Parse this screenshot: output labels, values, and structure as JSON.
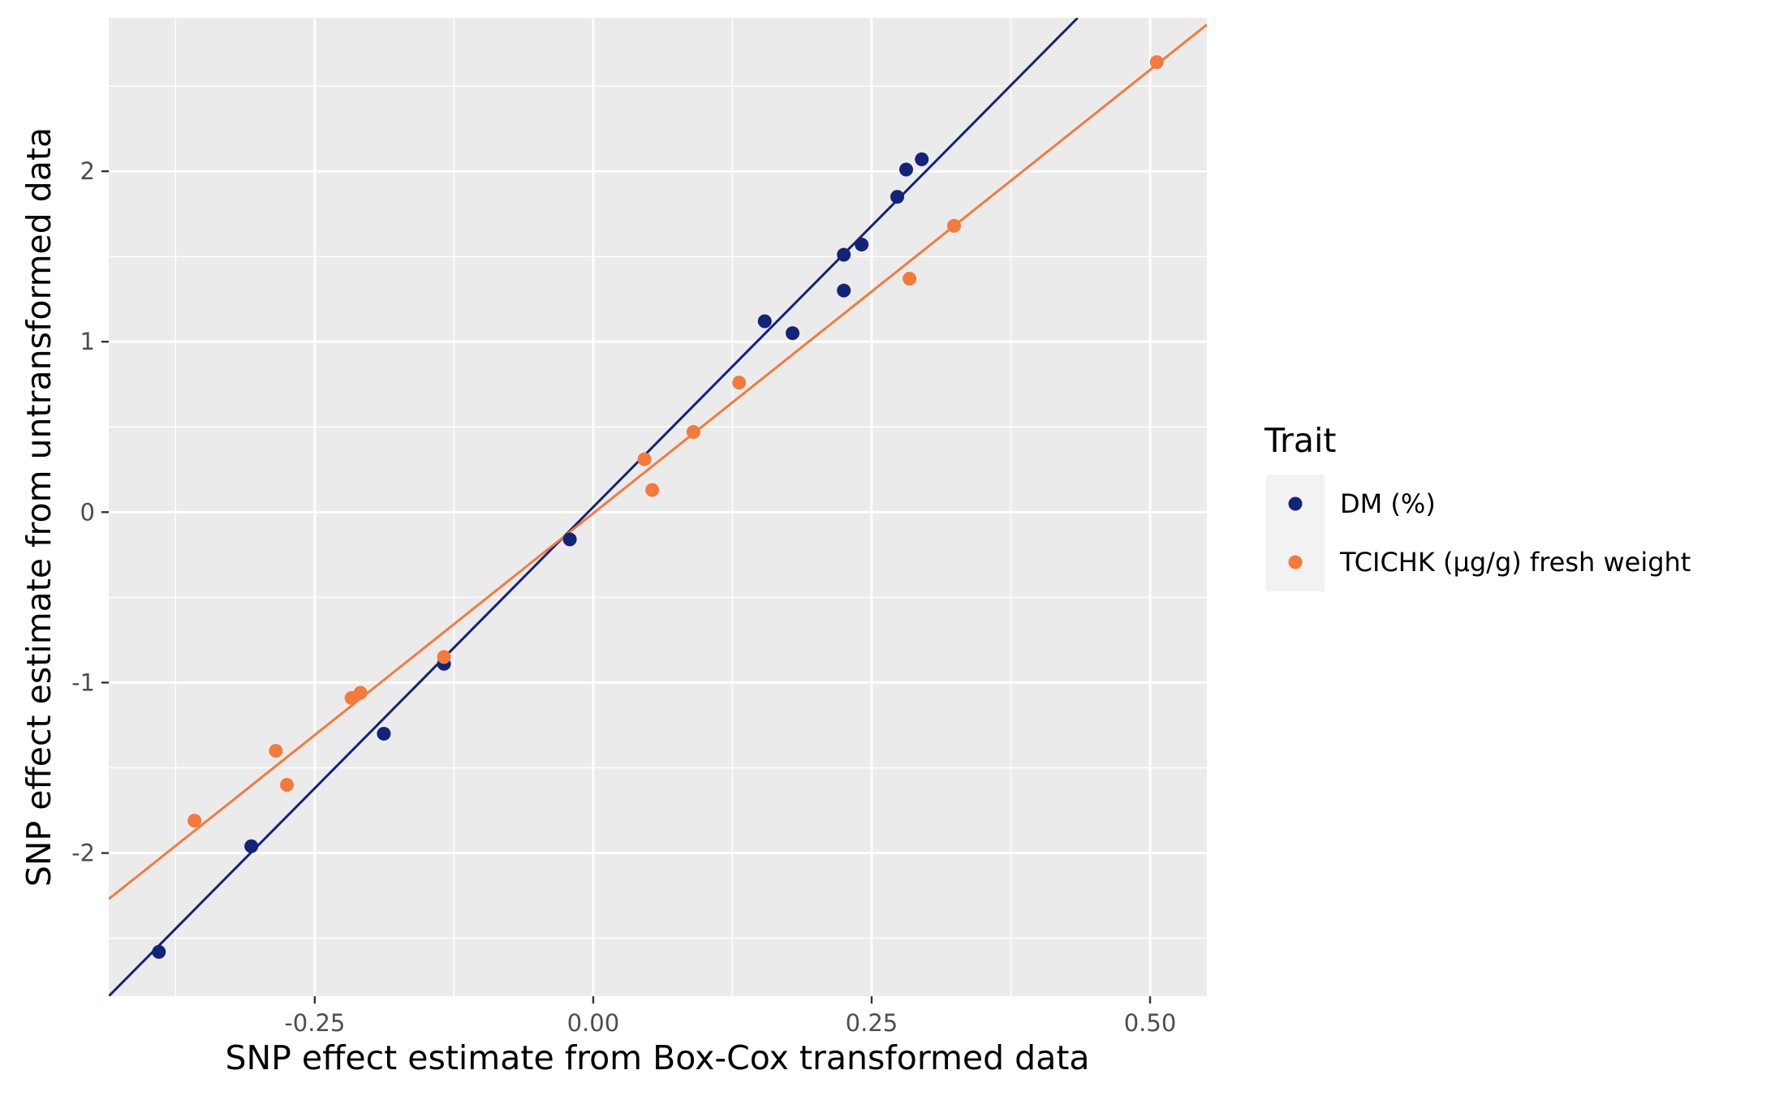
{
  "chart_data": {
    "type": "scatter",
    "title": "",
    "xlabel": "SNP effect estimate from Box-Cox transformed data",
    "ylabel": "SNP effect estimate from untransformed data",
    "xlim": [
      -0.435,
      0.551
    ],
    "ylim": [
      -2.84,
      2.9
    ],
    "x_ticks": [
      -0.25,
      0.0,
      0.25,
      0.5
    ],
    "x_tick_labels": [
      "-0.25",
      "0.00",
      "0.25",
      "0.50"
    ],
    "y_ticks": [
      -2,
      -1,
      0,
      1,
      2
    ],
    "y_tick_labels": [
      "-2",
      "-1",
      "0",
      "1",
      "2"
    ],
    "grid": true,
    "legend": {
      "title": "Trait",
      "position": "right"
    },
    "series": [
      {
        "name": "DM (%)",
        "color": "#13237a",
        "points": [
          [
            -0.39,
            -2.58
          ],
          [
            -0.307,
            -1.96
          ],
          [
            -0.188,
            -1.3
          ],
          [
            -0.134,
            -0.89
          ],
          [
            -0.021,
            -0.16
          ],
          [
            0.154,
            1.12
          ],
          [
            0.179,
            1.05
          ],
          [
            0.225,
            1.3
          ],
          [
            0.225,
            1.51
          ],
          [
            0.241,
            1.57
          ],
          [
            0.273,
            1.85
          ],
          [
            0.281,
            2.01
          ],
          [
            0.295,
            2.07
          ]
        ],
        "fit": [
          [
            -0.435,
            -2.84
          ],
          [
            0.435,
            2.9
          ]
        ]
      },
      {
        "name": "TCICHK (μg/g) fresh weight",
        "color": "#f47a3b",
        "points": [
          [
            -0.358,
            -1.81
          ],
          [
            -0.285,
            -1.4
          ],
          [
            -0.275,
            -1.6
          ],
          [
            -0.217,
            -1.09
          ],
          [
            -0.209,
            -1.06
          ],
          [
            -0.134,
            -0.85
          ],
          [
            0.046,
            0.31
          ],
          [
            0.053,
            0.13
          ],
          [
            0.09,
            0.47
          ],
          [
            0.131,
            0.76
          ],
          [
            0.284,
            1.37
          ],
          [
            0.324,
            1.68
          ],
          [
            0.506,
            2.64
          ]
        ],
        "fit": [
          [
            -0.435,
            -2.27
          ],
          [
            0.551,
            2.86
          ]
        ]
      }
    ]
  }
}
